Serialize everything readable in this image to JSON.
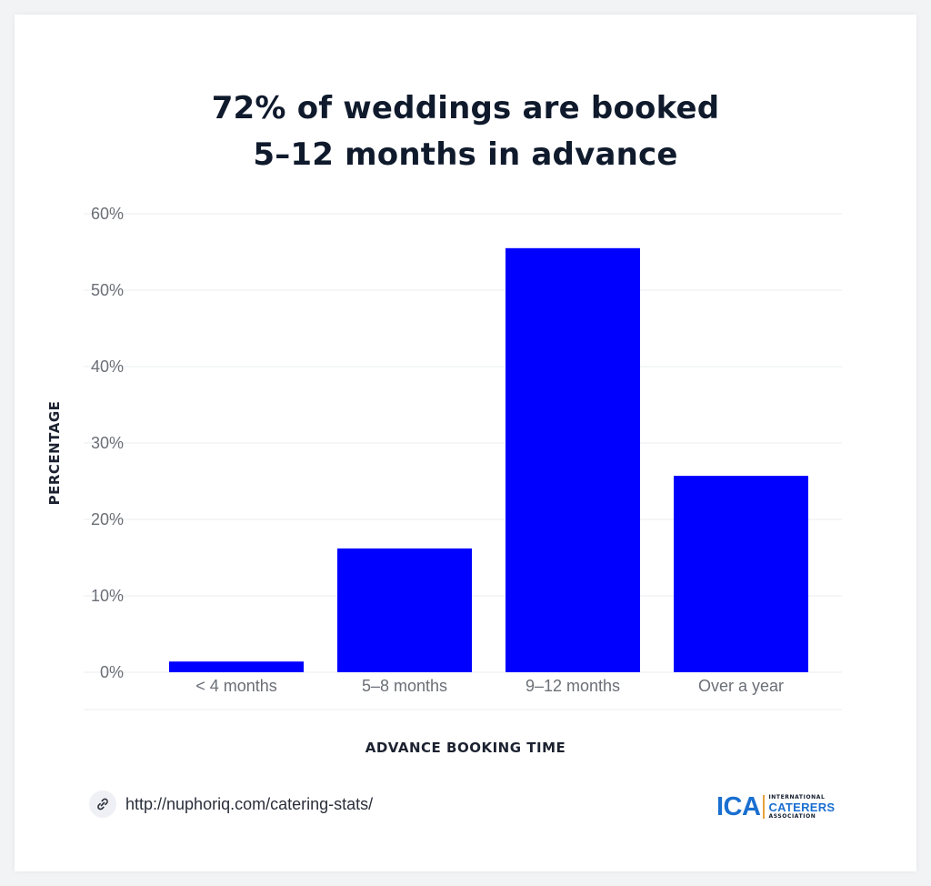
{
  "title_lines": [
    "72% of weddings are booked",
    "5–12 months in advance"
  ],
  "chart_data": {
    "type": "bar",
    "title": "72% of weddings are booked 5–12 months in advance",
    "categories": [
      "< 4 months",
      "5–8 months",
      "9–12 months",
      "Over a year"
    ],
    "values": [
      1.4,
      16.2,
      55.5,
      25.7
    ],
    "xlabel": "ADVANCE BOOKING TIME",
    "ylabel": "PERCENTAGE",
    "ylim": [
      0,
      60
    ],
    "yticks": [
      0,
      10,
      20,
      30,
      40,
      50,
      60
    ],
    "ytick_labels": [
      "0%",
      "10%",
      "20%",
      "30%",
      "40%",
      "50%",
      "60%"
    ],
    "grid": true,
    "legend": "none",
    "bar_color": "#0000ff"
  },
  "footer": {
    "link_icon": "link-icon",
    "url": "http://nuphoriq.com/catering-stats/"
  },
  "logo": {
    "mark": "ICA",
    "line1": "INTERNATIONAL",
    "line2": "CATERERS",
    "line3": "ASSOCIATION",
    "accent_color": "#1a6fd0",
    "divider_color": "#e8a13a"
  }
}
